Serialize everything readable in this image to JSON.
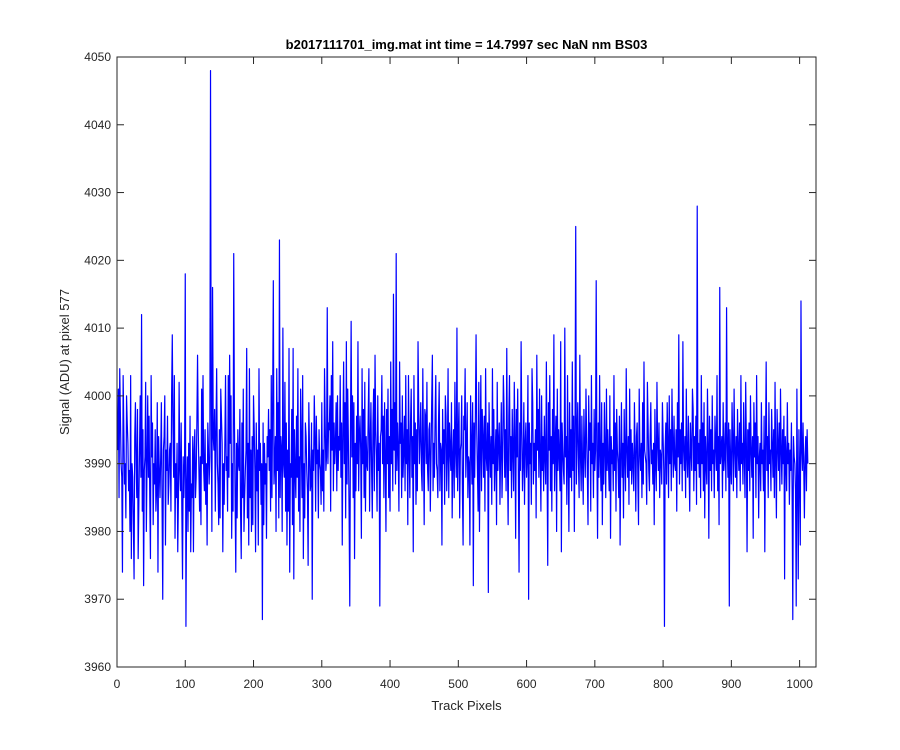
{
  "chart_data": {
    "type": "line",
    "title": "b2017111701_img.mat int time = 14.7997 sec  NaN nm BS03",
    "xlabel": "Track Pixels",
    "ylabel": "Signal (ADU) at pixel 577",
    "xlim": [
      0,
      1024
    ],
    "ylim": [
      3960,
      4050
    ],
    "xticks": [
      0,
      100,
      200,
      300,
      400,
      500,
      600,
      700,
      800,
      900,
      1000
    ],
    "yticks": [
      3960,
      3970,
      3980,
      3990,
      4000,
      4010,
      4020,
      4030,
      4040,
      4050
    ],
    "grid": false,
    "box": true,
    "series": [
      {
        "color": "#0000ff",
        "x_start": 1,
        "x_step": 1,
        "y": [
          3992,
          4001,
          3985,
          4004,
          3997,
          3990,
          3988,
          3974,
          4003,
          3995,
          3987,
          3990,
          3982,
          4000,
          3996,
          3993,
          3986,
          3989,
          3980,
          4003,
          3976,
          3990,
          3988,
          3981,
          3973,
          3994,
          3999,
          3990,
          3985,
          3998,
          3976,
          3984,
          3992,
          4000,
          3988,
          4012,
          3983,
          3995,
          3972,
          3989,
          3991,
          4002,
          3980,
          3990,
          4000,
          3988,
          3997,
          3985,
          3976,
          4003,
          3991,
          3996,
          3981,
          3990,
          3987,
          3995,
          3983,
          3986,
          3999,
          3974,
          3994,
          3989,
          3985,
          3991,
          3999,
          3984,
          3970,
          3992,
          3994,
          4000,
          3978,
          3992,
          3989,
          3997,
          3984,
          3987,
          3992,
          3993,
          3983,
          4000,
          4009,
          3995,
          3988,
          4003,
          3979,
          3990,
          3985,
          3993,
          3977,
          3985,
          4002,
          3989,
          3986,
          3996,
          3983,
          3973,
          3991,
          3985,
          3990,
          4018,
          3966,
          3986,
          3991,
          3980,
          3993,
          3983,
          3997,
          3977,
          3987,
          3985,
          3994,
          3977,
          3992,
          3995,
          3985,
          3988,
          3996,
          4006,
          3995,
          3989,
          3983,
          3991,
          3981,
          4001,
          3990,
          4003,
          3989,
          3986,
          3995,
          3984,
          3990,
          3978,
          3996,
          3992,
          3987,
          3991,
          4048,
          3998,
          3980,
          4016,
          3994,
          3992,
          3998,
          3983,
          3995,
          4004,
          3990,
          3987,
          3981,
          3995,
          3982,
          4001,
          3997,
          3993,
          3977,
          3990,
          3984,
          3993,
          4003,
          3989,
          3991,
          3983,
          4003,
          3988,
          4006,
          3993,
          4000,
          3979,
          3990,
          3983,
          4021,
          3997,
          3985,
          3974,
          3993,
          3982,
          3995,
          3990,
          3989,
          3998,
          3983,
          3976,
          3996,
          3985,
          4001,
          3980,
          3985,
          3989,
          3992,
          4007,
          3982,
          3993,
          3978,
          4004,
          3985,
          3992,
          3980,
          3994,
          3981,
          4000,
          3995,
          3989,
          3977,
          3996,
          3986,
          3992,
          3978,
          4004,
          3989,
          3993,
          3984,
          3990,
          3967,
          3996,
          3981,
          3993,
          3987,
          3990,
          3979,
          3994,
          3991,
          3998,
          3989,
          3995,
          3983,
          4003,
          3985,
          3999,
          4017,
          3987,
          3990,
          3994,
          3980,
          4004,
          3989,
          3999,
          3982,
          4023,
          3985,
          3994,
          3992,
          3980,
          4010,
          3990,
          3988,
          4002,
          3983,
          3996,
          3978,
          3992,
          3983,
          4007,
          3974,
          3990,
          3988,
          3998,
          3981,
          4007,
          3973,
          3995,
          3989,
          3985,
          3997,
          3988,
          4004,
          3983,
          3991,
          3980,
          4001,
          3993,
          3985,
          4003,
          3976,
          3990,
          3982,
          3996,
          3994,
          3989,
          3986,
          3975,
          3999,
          3992,
          3986,
          3987,
          3996,
          3970,
          3992,
          3989,
          4000,
          3994,
          3983,
          3997,
          3990,
          3992,
          3982,
          3995,
          3990,
          3989,
          3984,
          3999,
          3986,
          3992,
          3983,
          4004,
          3996,
          3989,
          3991,
          4013,
          3990,
          3996,
          3995,
          4000,
          3983,
          4003,
          3992,
          4008,
          3986,
          3996,
          3990,
          3993,
          3999,
          3986,
          4000,
          3989,
          3994,
          3992,
          4003,
          3988,
          3996,
          3978,
          3995,
          4005,
          3990,
          3999,
          3982,
          4008,
          3987,
          4001,
          3993,
          3983,
          3969,
          3995,
          4011,
          3991,
          4000,
          3985,
          3999,
          3976,
          3993,
          3986,
          3997,
          3990,
          4008,
          3986,
          3994,
          3997,
          3992,
          3979,
          4004,
          3990,
          3998,
          3985,
          4002,
          3983,
          3994,
          3990,
          3989,
          3997,
          4004,
          3983,
          3993,
          3999,
          3989,
          3982,
          3996,
          4001,
          3986,
          4006,
          3995,
          3991,
          3983,
          4000,
          3989,
          3993,
          3969,
          3994,
          3995,
          4003,
          3990,
          3997,
          3985,
          3999,
          3991,
          3980,
          3998,
          3990,
          4001,
          3985,
          3994,
          3983,
          4005,
          3990,
          3998,
          3986,
          4015,
          3992,
          3999,
          3987,
          4021,
          3989,
          3996,
          3992,
          3983,
          4005,
          3993,
          3996,
          3985,
          4000,
          3988,
          3992,
          3997,
          3986,
          4003,
          3990,
          3995,
          3981,
          4003,
          3992,
          3985,
          3996,
          4001,
          3988,
          3994,
          3977,
          4003,
          3990,
          3996,
          3984,
          3995,
          3986,
          4008,
          3998,
          3990,
          3994,
          3999,
          3989,
          3986,
          4004,
          3992,
          3981,
          3998,
          3997,
          3990,
          4002,
          3989,
          3986,
          3995,
          3996,
          3983,
          3991,
          3999,
          4006,
          3986,
          3993,
          3988,
          3997,
          4003,
          3990,
          3989,
          3985,
          3996,
          4002,
          3986,
          3993,
          3992,
          3978,
          3998,
          3990,
          3995,
          3984,
          4000,
          3997,
          3986,
          3991,
          4004,
          3985,
          3996,
          3992,
          3989,
          3999,
          3982,
          3991,
          3995,
          3985,
          4002,
          3992,
          3988,
          4010,
          3986,
          3994,
          3999,
          3982,
          3992,
          3993,
          4000,
          3986,
          3978,
          3997,
          3995,
          4004,
          3988,
          3992,
          3999,
          3985,
          3991,
          3990,
          3978,
          4000,
          3993,
          3987,
          3999,
          3972,
          3996,
          3988,
          3997,
          4009,
          3995,
          3989,
          3983,
          4002,
          3980,
          3991,
          4003,
          3986,
          3998,
          3994,
          3988,
          3997,
          3983,
          4004,
          3991,
          3989,
          3996,
          3971,
          3999,
          3993,
          3988,
          3994,
          3984,
          4004,
          3990,
          3998,
          3986,
          3991,
          3995,
          3981,
          4002,
          3989,
          3993,
          3996,
          3984,
          3992,
          3999,
          3985,
          3991,
          4003,
          3998,
          3988,
          3995,
          3986,
          4007,
          3990,
          3981,
          3997,
          4003,
          3989,
          3994,
          3985,
          3998,
          3992,
          3986,
          4002,
          3994,
          3979,
          3998,
          3991,
          4001,
          3988,
          3974,
          3996,
          3989,
          4008,
          3995,
          3986,
          3990,
          3999,
          3984,
          3993,
          3996,
          3988,
          3991,
          4003,
          3970,
          3996,
          3990,
          3993,
          3984,
          4004,
          3999,
          3987,
          3993,
          3989,
          3995,
          3982,
          4006,
          3992,
          3998,
          3988,
          4001,
          3991,
          3983,
          4000,
          3989,
          3994,
          3986,
          3997,
          3991,
          3987,
          4005,
          3990,
          3975,
          3999,
          3992,
          4003,
          3986,
          3994,
          3983,
          3998,
          3990,
          4009,
          3986,
          3993,
          3997,
          3980,
          4001,
          3989,
          3995,
          3991,
          3986,
          4008,
          3977,
          3996,
          3992,
          3989,
          3987,
          4010,
          3991,
          3994,
          3984,
          4003,
          3990,
          3980,
          3999,
          3988,
          3995,
          3986,
          4005,
          3989,
          3997,
          3980,
          3996,
          4025,
          3987,
          3994,
          3999,
          3990,
          3985,
          4006,
          3991,
          3986,
          3997,
          3990,
          3984,
          3998,
          3992,
          3988,
          4001,
          3994,
          3989,
          3981,
          4000,
          3992,
          3996,
          3983,
          4003,
          3990,
          3993,
          3985,
          3998,
          3989,
          3992,
          4017,
          3992,
          3979,
          3996,
          3988,
          4003,
          3991,
          3986,
          3999,
          3981,
          3993,
          3987,
          3999,
          3992,
          3985,
          4001,
          3989,
          3995,
          3990,
          3986,
          4000,
          3979,
          3994,
          3990,
          3992,
          3986,
          4003,
          3989,
          3996,
          3983,
          3998,
          3992,
          3990,
          3985,
          3997,
          3978,
          3991,
          3999,
          3988,
          3993,
          3982,
          3998,
          3991,
          3986,
          4004,
          3992,
          3988,
          3994,
          3984,
          4001,
          3989,
          3995,
          3987,
          3993,
          3990,
          3986,
          3999,
          3992,
          3983,
          3994,
          3996,
          3988,
          3981,
          4001,
          3992,
          3989,
          3993,
          3985,
          3999,
          3987,
          4005,
          3992,
          3991,
          3990,
          3984,
          4002,
          3996,
          3989,
          3986,
          3994,
          3999,
          3990,
          3992,
          3987,
          3993,
          3981,
          3998,
          3990,
          3986,
          4002,
          3993,
          3989,
          3996,
          3985,
          3992,
          3991,
          3987,
          3999,
          3994,
          3989,
          3966,
          3992,
          3996,
          3987,
          3999,
          3993,
          3985,
          4000,
          3990,
          3995,
          3986,
          4001,
          3993,
          3988,
          3997,
          3990,
          3989,
          3995,
          3983,
          3999,
          3991,
          4009,
          3987,
          3995,
          3990,
          3996,
          3986,
          4008,
          3992,
          3989,
          3994,
          3985,
          4001,
          3991,
          3988,
          3997,
          3990,
          3983,
          3996,
          3992,
          3989,
          4001,
          3998,
          3986,
          3994,
          3989,
          3997,
          3984,
          4028,
          3990,
          3993,
          3988,
          3995,
          3985,
          4003,
          3990,
          3996,
          3986,
          3999,
          3982,
          3994,
          3990,
          3987,
          4001,
          3993,
          3979,
          3997,
          3989,
          3995,
          3986,
          4000,
          3990,
          3992,
          3985,
          3997,
          3993,
          3989,
          4003,
          3986,
          3994,
          3981,
          4016,
          3990,
          3992,
          3994,
          3985,
          3999,
          3989,
          3991,
          3996,
          3986,
          4013,
          3993,
          3988,
          3996,
          3969,
          3995,
          3990,
          3987,
          3999,
          3993,
          3986,
          4001,
          3992,
          3988,
          3994,
          3985,
          3998,
          3992,
          3989,
          3996,
          3986,
          4003,
          3990,
          3993,
          3987,
          3999,
          3991,
          3985,
          4002,
          3993,
          3977,
          3995,
          3989,
          3996,
          3986,
          4000,
          3992,
          3988,
          3994,
          3979,
          3999,
          3991,
          3996,
          3985,
          4003,
          3990,
          3994,
          3982,
          3991,
          3993,
          3986,
          3999,
          3990,
          3992,
          3986,
          3997,
          3977,
          3993,
          4005,
          3989,
          3994,
          3985,
          3999,
          3990,
          3992,
          3986,
          3998,
          3993,
          3988,
          3995,
          3985,
          4002,
          3990,
          3982,
          3998,
          3993,
          3989,
          3996,
          3986,
          4001,
          3992,
          3987,
          3995,
          3990,
          3997,
          3973,
          3994,
          3991,
          3986,
          3999,
          3990,
          3993,
          3984,
          3992,
          3989,
          3996,
          3986,
          3967,
          3994,
          3991,
          3990,
          3986,
          3969,
          4001,
          3987,
          3973,
          3995,
          3988,
          3978,
          4014,
          3992,
          3989,
          3996,
          3990,
          3982,
          3991,
          3994,
          3986,
          3995,
          3990
        ]
      }
    ]
  }
}
